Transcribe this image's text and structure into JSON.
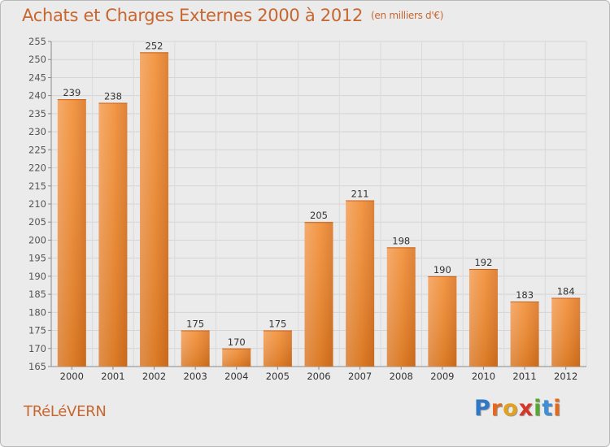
{
  "title": "Achats et Charges Externes 2000 à 2012",
  "subtitle": "(en milliers d'€)",
  "commune": "TRéLéVERN",
  "logo": {
    "letters": [
      "P",
      "r",
      "o",
      "x",
      "i",
      "t",
      "i"
    ],
    "colors": [
      "#2f78c6",
      "#e36a1c",
      "#e2a11f",
      "#d8352a",
      "#57a832",
      "#3e8fd6",
      "#e36a1c"
    ]
  },
  "colors": {
    "bar_main": "#f08a2c",
    "bar_light": "#f6b174",
    "bar_dark": "#c7691b",
    "text": "#c8662f",
    "grid": "#d2d2d2"
  },
  "chart_data": {
    "type": "bar",
    "categories": [
      "2000",
      "2001",
      "2002",
      "2003",
      "2004",
      "2005",
      "2006",
      "2007",
      "2008",
      "2009",
      "2010",
      "2011",
      "2012"
    ],
    "values": [
      239,
      238,
      252,
      175,
      170,
      175,
      205,
      211,
      198,
      190,
      192,
      183,
      184
    ],
    "data_labels": [
      "239",
      "238",
      "252",
      "175",
      "170",
      "175",
      "205",
      "211",
      "198",
      "190",
      "192",
      "183",
      "184"
    ],
    "ylim": [
      165,
      255
    ],
    "yticks": [
      165,
      170,
      175,
      180,
      185,
      190,
      195,
      200,
      205,
      210,
      215,
      220,
      225,
      230,
      235,
      240,
      245,
      250,
      255
    ],
    "grid": true,
    "xlabel": "",
    "ylabel": ""
  }
}
